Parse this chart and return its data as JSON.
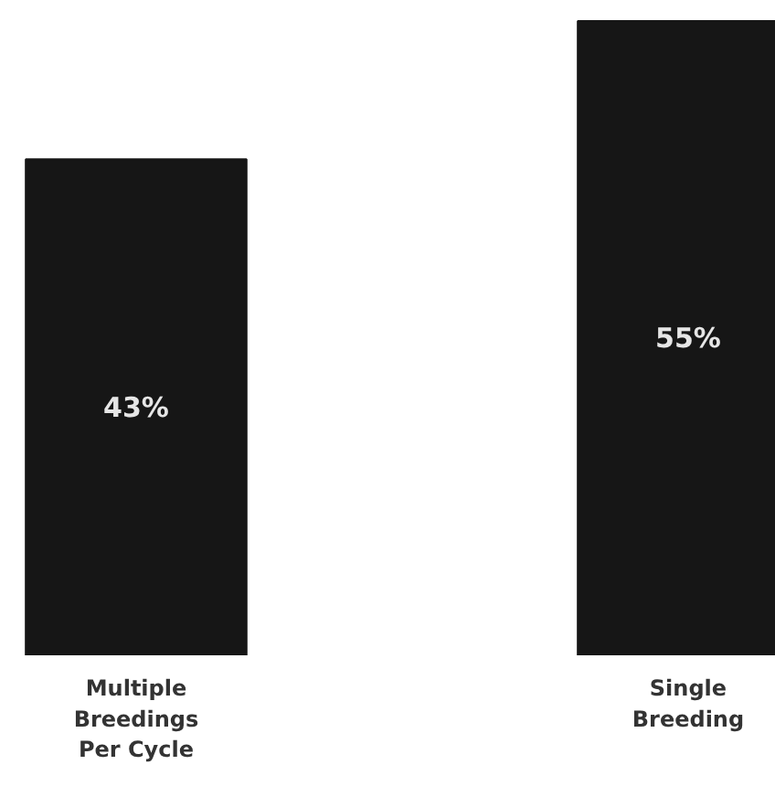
{
  "chart_data": {
    "type": "bar",
    "categories": [
      "Multiple Breedings Per Cycle",
      "Single Breeding"
    ],
    "values": [
      43,
      55
    ],
    "color": "#161616",
    "value_labels": [
      "43%",
      "55%"
    ]
  }
}
